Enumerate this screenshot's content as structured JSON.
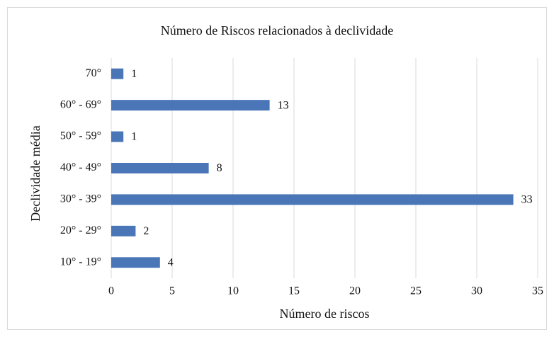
{
  "chart_data": {
    "type": "hbar",
    "title": "Número de Riscos relacionados à declividade",
    "categories": [
      "70°",
      "60° - 69°",
      "50° - 59°",
      "40° - 49°",
      "30° - 39°",
      "20° - 29°",
      "10° - 19°"
    ],
    "values": [
      1,
      13,
      1,
      8,
      33,
      2,
      4
    ],
    "color": "#4a76b8",
    "xlabel": "Número de riscos",
    "ylabel": "Declividade média",
    "xlim": [
      0,
      35
    ],
    "xticks": [
      0,
      5,
      10,
      15,
      20,
      25,
      30,
      35
    ],
    "grid": true
  }
}
